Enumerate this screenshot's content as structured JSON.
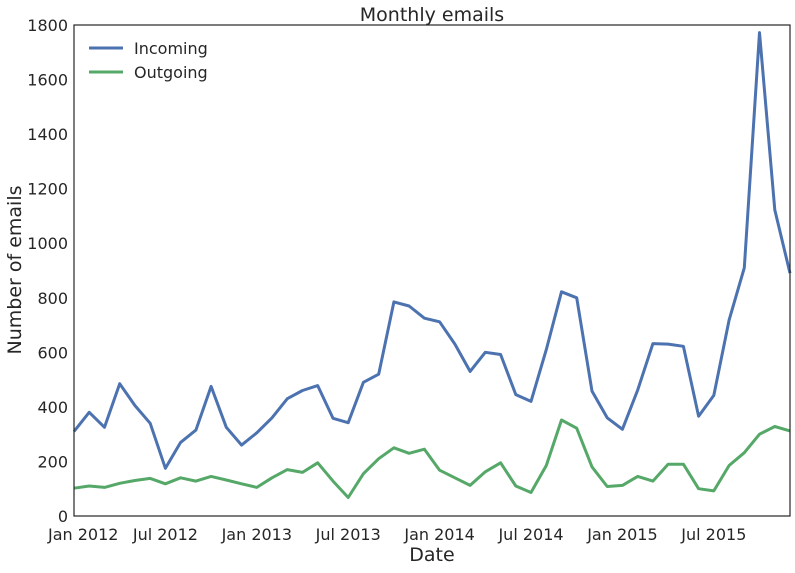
{
  "chart_data": {
    "type": "line",
    "title": "Monthly emails",
    "xlabel": "Date",
    "ylabel": "Number of emails",
    "ylim": [
      0,
      1800
    ],
    "yticks": [
      0,
      200,
      400,
      600,
      800,
      1000,
      1200,
      1400,
      1600,
      1800
    ],
    "xlim": [
      "2012-01",
      "2015-12"
    ],
    "xticks": [
      {
        "date": "2012-01",
        "label": "Jan 2012"
      },
      {
        "date": "2012-07",
        "label": "Jul 2012"
      },
      {
        "date": "2013-01",
        "label": "Jan 2013"
      },
      {
        "date": "2013-07",
        "label": "Jul 2013"
      },
      {
        "date": "2014-01",
        "label": "Jan 2014"
      },
      {
        "date": "2014-07",
        "label": "Jul 2014"
      },
      {
        "date": "2015-01",
        "label": "Jan 2015"
      },
      {
        "date": "2015-07",
        "label": "Jul 2015"
      }
    ],
    "grid": false,
    "legend_position": "top-left",
    "x": [
      "2012-01",
      "2012-02",
      "2012-03",
      "2012-04",
      "2012-05",
      "2012-06",
      "2012-07",
      "2012-08",
      "2012-09",
      "2012-10",
      "2012-11",
      "2012-12",
      "2013-01",
      "2013-02",
      "2013-03",
      "2013-04",
      "2013-05",
      "2013-06",
      "2013-07",
      "2013-08",
      "2013-09",
      "2013-10",
      "2013-11",
      "2013-12",
      "2014-01",
      "2014-02",
      "2014-03",
      "2014-04",
      "2014-05",
      "2014-06",
      "2014-07",
      "2014-08",
      "2014-09",
      "2014-10",
      "2014-11",
      "2014-12",
      "2015-01",
      "2015-02",
      "2015-03",
      "2015-04",
      "2015-05",
      "2015-06",
      "2015-07",
      "2015-08",
      "2015-09",
      "2015-10",
      "2015-11",
      "2015-12"
    ],
    "series": [
      {
        "name": "Incoming",
        "color": "#4c72b0",
        "values": [
          310,
          380,
          325,
          485,
          405,
          340,
          175,
          270,
          315,
          475,
          325,
          260,
          305,
          360,
          430,
          460,
          478,
          358,
          342,
          490,
          520,
          785,
          770,
          725,
          712,
          630,
          530,
          600,
          592,
          445,
          420,
          610,
          822,
          800,
          458,
          360,
          318,
          462,
          632,
          630,
          622,
          366,
          442,
          718,
          910,
          1772,
          1122,
          890
        ]
      },
      {
        "name": "Outgoing",
        "color": "#55a868",
        "values": [
          102,
          110,
          105,
          120,
          130,
          138,
          118,
          140,
          128,
          145,
          132,
          118,
          105,
          140,
          170,
          160,
          195,
          128,
          68,
          155,
          210,
          250,
          230,
          245,
          168,
          140,
          112,
          162,
          195,
          110,
          86,
          185,
          352,
          322,
          180,
          108,
          112,
          145,
          128,
          190,
          190,
          100,
          92,
          185,
          232,
          300,
          328,
          312
        ]
      }
    ]
  }
}
